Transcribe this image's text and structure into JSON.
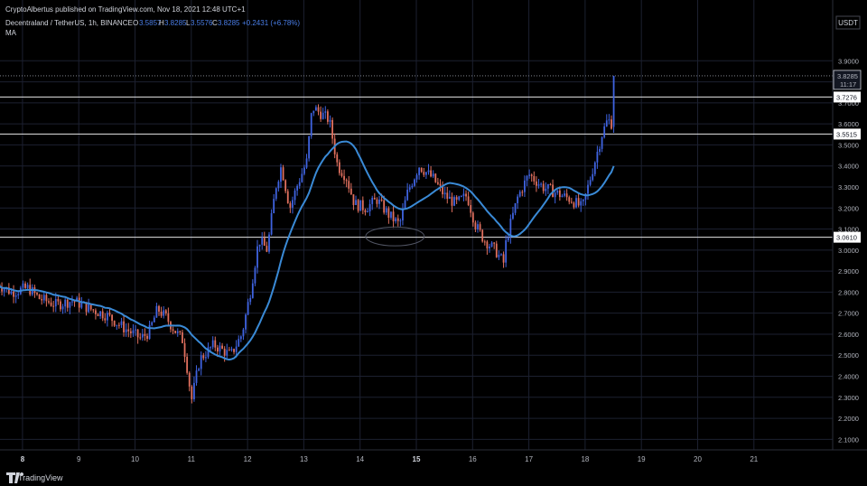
{
  "header": {
    "publish_line": "CryptoAlbertus published on TradingView.com, Nov 18, 2021 12:48 UTC+1",
    "symbol_line": "Decentraland / TetherUS, 1h, BINANCE",
    "ohlc": {
      "o_label": "O",
      "o": "3.5857",
      "h_label": "H",
      "h": "3.8285",
      "l_label": "L",
      "l": "3.5576",
      "c_label": "C",
      "c": "3.8285",
      "change": "+0.2431 (+6.78%)"
    },
    "indicator_label": "MA"
  },
  "currency": "USDT",
  "footer": {
    "brand": "TradingView"
  },
  "price_tags": {
    "last_price": "3.8285",
    "countdown": "11:17"
  },
  "colors": {
    "background": "#000000",
    "grid": "#1c2030",
    "up_candle": "#3f63e0",
    "down_candle": "#e0705e",
    "ma_line": "#3a8ad6",
    "level_line": "#e6e6e6",
    "last_price_dotted": "#9598a1"
  },
  "chart_data": {
    "type": "candlestick",
    "symbol": "Decentraland / TetherUS",
    "timeframe": "1h",
    "exchange": "BINANCE",
    "ylim": [
      2.05,
      4.0
    ],
    "y_ticks": [
      3.9,
      3.8,
      3.7,
      3.6,
      3.5,
      3.4,
      3.3,
      3.2,
      3.1,
      3.0,
      2.9,
      2.8,
      2.7,
      2.6,
      2.5,
      2.4,
      2.3,
      2.2,
      2.1
    ],
    "y_tick_labels": [
      "3.9000",
      "3.8000",
      "3.7000",
      "3.6000",
      "3.5000",
      "3.4000",
      "3.3000",
      "3.2000",
      "3.1000",
      "3.0000",
      "2.9000",
      "2.8000",
      "2.7000",
      "2.6000",
      "2.5000",
      "2.4000",
      "2.3000",
      "2.2000",
      "2.1000"
    ],
    "x_ticks": [
      {
        "label": "8",
        "bold": true,
        "day": 8
      },
      {
        "label": "9",
        "bold": false,
        "day": 9
      },
      {
        "label": "10",
        "bold": false,
        "day": 10
      },
      {
        "label": "11",
        "bold": false,
        "day": 11
      },
      {
        "label": "12",
        "bold": false,
        "day": 12
      },
      {
        "label": "13",
        "bold": false,
        "day": 13
      },
      {
        "label": "14",
        "bold": false,
        "day": 14
      },
      {
        "label": "15",
        "bold": true,
        "day": 15
      },
      {
        "label": "16",
        "bold": false,
        "day": 16
      },
      {
        "label": "17",
        "bold": false,
        "day": 17
      },
      {
        "label": "18",
        "bold": false,
        "day": 18
      },
      {
        "label": "19",
        "bold": false,
        "day": 19
      },
      {
        "label": "20",
        "bold": false,
        "day": 20
      },
      {
        "label": "21",
        "bold": false,
        "day": 21
      }
    ],
    "x_range_days": [
      7.6,
      22.4
    ],
    "horizontal_levels": [
      {
        "value": 3.7276,
        "label": "3.7276"
      },
      {
        "value": 3.5515,
        "label": "3.5515"
      },
      {
        "value": 3.061,
        "label": "3.0610"
      }
    ],
    "last_price": 3.8285,
    "annotation_ellipse": {
      "day_center": 14.62,
      "price_center": 3.065,
      "day_half_width": 0.52,
      "price_half_height": 0.045
    },
    "price_anchors": [
      [
        7.55,
        2.84
      ],
      [
        7.8,
        2.8
      ],
      [
        8.1,
        2.82
      ],
      [
        8.3,
        2.77
      ],
      [
        8.6,
        2.74
      ],
      [
        8.9,
        2.76
      ],
      [
        9.2,
        2.72
      ],
      [
        9.5,
        2.69
      ],
      [
        9.8,
        2.63
      ],
      [
        10.1,
        2.58
      ],
      [
        10.25,
        2.61
      ],
      [
        10.4,
        2.72
      ],
      [
        10.55,
        2.68
      ],
      [
        10.7,
        2.62
      ],
      [
        10.85,
        2.57
      ],
      [
        10.95,
        2.4
      ],
      [
        11.0,
        2.28
      ],
      [
        11.15,
        2.48
      ],
      [
        11.4,
        2.55
      ],
      [
        11.7,
        2.5
      ],
      [
        11.9,
        2.6
      ],
      [
        12.05,
        2.8
      ],
      [
        12.2,
        3.05
      ],
      [
        12.35,
        3.0
      ],
      [
        12.5,
        3.3
      ],
      [
        12.6,
        3.4
      ],
      [
        12.75,
        3.2
      ],
      [
        12.9,
        3.32
      ],
      [
        13.05,
        3.42
      ],
      [
        13.15,
        3.68
      ],
      [
        13.3,
        3.65
      ],
      [
        13.45,
        3.62
      ],
      [
        13.6,
        3.4
      ],
      [
        13.75,
        3.35
      ],
      [
        13.9,
        3.22
      ],
      [
        14.1,
        3.2
      ],
      [
        14.3,
        3.24
      ],
      [
        14.5,
        3.17
      ],
      [
        14.7,
        3.12
      ],
      [
        14.85,
        3.28
      ],
      [
        15.05,
        3.4
      ],
      [
        15.3,
        3.34
      ],
      [
        15.5,
        3.26
      ],
      [
        15.7,
        3.22
      ],
      [
        15.9,
        3.26
      ],
      [
        16.05,
        3.12
      ],
      [
        16.2,
        3.05
      ],
      [
        16.4,
        3.0
      ],
      [
        16.55,
        2.94
      ],
      [
        16.6,
        3.05
      ],
      [
        16.8,
        3.25
      ],
      [
        17.0,
        3.36
      ],
      [
        17.25,
        3.3
      ],
      [
        17.5,
        3.27
      ],
      [
        17.75,
        3.24
      ],
      [
        17.95,
        3.2
      ],
      [
        18.1,
        3.35
      ],
      [
        18.3,
        3.55
      ],
      [
        18.4,
        3.62
      ],
      [
        18.48,
        3.6
      ],
      [
        18.52,
        3.8285
      ]
    ]
  }
}
